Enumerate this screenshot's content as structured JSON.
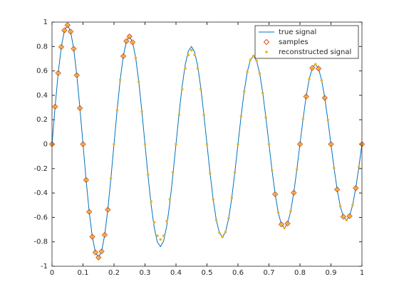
{
  "chart_data": {
    "type": "line",
    "x": [
      0,
      0.01,
      0.02,
      0.03,
      0.04,
      0.05,
      0.06,
      0.07,
      0.08,
      0.09,
      0.1,
      0.11,
      0.12,
      0.13,
      0.14,
      0.15,
      0.16,
      0.17,
      0.18,
      0.19,
      0.2,
      0.21,
      0.22,
      0.23,
      0.24,
      0.25,
      0.26,
      0.27,
      0.28,
      0.29,
      0.3,
      0.31,
      0.32,
      0.33,
      0.34,
      0.35,
      0.36,
      0.37,
      0.38,
      0.39,
      0.4,
      0.41,
      0.42,
      0.43,
      0.44,
      0.45,
      0.46,
      0.47,
      0.48,
      0.49,
      0.5,
      0.51,
      0.52,
      0.53,
      0.54,
      0.55,
      0.56,
      0.57,
      0.58,
      0.59,
      0.6,
      0.61,
      0.62,
      0.63,
      0.64,
      0.65,
      0.66,
      0.67,
      0.68,
      0.69,
      0.7,
      0.71,
      0.72,
      0.73,
      0.74,
      0.75,
      0.76,
      0.77,
      0.78,
      0.79,
      0.8,
      0.81,
      0.82,
      0.83,
      0.84,
      0.85,
      0.86,
      0.87,
      0.88,
      0.89,
      0.9,
      0.91,
      0.92,
      0.93,
      0.94,
      0.95,
      0.96,
      0.97,
      0.98,
      0.99,
      1
    ],
    "series": [
      {
        "name": "true signal",
        "color": "#0072bd",
        "style": "line",
        "values": [
          0,
          0.307,
          0.582,
          0.797,
          0.932,
          0.975,
          0.922,
          0.781,
          0.565,
          0.295,
          0,
          -0.293,
          -0.554,
          -0.758,
          -0.886,
          -0.928,
          -0.878,
          -0.743,
          -0.537,
          -0.281,
          0,
          0.278,
          0.527,
          0.721,
          0.844,
          0.882,
          0.835,
          0.707,
          0.511,
          0.267,
          0,
          -0.265,
          -0.501,
          -0.686,
          -0.803,
          -0.839,
          -0.794,
          -0.672,
          -0.486,
          -0.254,
          0,
          0.252,
          0.477,
          0.653,
          0.764,
          0.799,
          0.756,
          0.64,
          0.463,
          0.242,
          0,
          -0.239,
          -0.453,
          -0.621,
          -0.726,
          -0.76,
          -0.719,
          -0.608,
          -0.44,
          -0.23,
          0,
          0.228,
          0.431,
          0.591,
          0.69,
          0.723,
          0.684,
          0.579,
          0.419,
          0.219,
          0,
          -0.217,
          -0.41,
          -0.561,
          -0.657,
          -0.687,
          -0.65,
          -0.55,
          -0.398,
          -0.208,
          0,
          0.206,
          0.39,
          0.534,
          0.625,
          0.654,
          0.619,
          0.523,
          0.379,
          0.198,
          0,
          -0.196,
          -0.371,
          -0.508,
          -0.594,
          -0.622,
          -0.589,
          -0.498,
          -0.36,
          -0.188,
          0
        ]
      },
      {
        "name": "samples",
        "color": "#d95319",
        "style": "diamond",
        "x": [
          0,
          0.01,
          0.02,
          0.03,
          0.04,
          0.05,
          0.06,
          0.07,
          0.08,
          0.09,
          0.1,
          0.11,
          0.12,
          0.13,
          0.14,
          0.15,
          0.16,
          0.17,
          0.18,
          0.23,
          0.24,
          0.25,
          0.26,
          0.72,
          0.74,
          0.76,
          0.78,
          0.8,
          0.82,
          0.84,
          0.86,
          0.88,
          0.9,
          0.92,
          0.94,
          0.96,
          0.98,
          1
        ],
        "values": [
          0,
          0.307,
          0.582,
          0.797,
          0.932,
          0.975,
          0.922,
          0.781,
          0.565,
          0.295,
          0,
          -0.293,
          -0.554,
          -0.758,
          -0.886,
          -0.928,
          -0.878,
          -0.743,
          -0.537,
          0.721,
          0.844,
          0.882,
          0.835,
          -0.41,
          -0.657,
          -0.65,
          -0.398,
          0,
          0.39,
          0.625,
          0.619,
          0.379,
          0,
          -0.371,
          -0.594,
          -0.589,
          -0.36,
          0
        ]
      },
      {
        "name": "reconstructed signal",
        "color": "#edb120",
        "style": "dot",
        "values": [
          0,
          0.307,
          0.582,
          0.797,
          0.932,
          0.975,
          0.922,
          0.781,
          0.565,
          0.295,
          0,
          -0.293,
          -0.554,
          -0.758,
          -0.886,
          -0.928,
          -0.878,
          -0.743,
          -0.537,
          -0.281,
          0,
          0.278,
          0.527,
          0.721,
          0.844,
          0.882,
          0.835,
          0.707,
          0.511,
          0.267,
          0,
          -0.25,
          -0.47,
          -0.64,
          -0.75,
          -0.78,
          -0.75,
          -0.63,
          -0.45,
          -0.23,
          0,
          0.24,
          0.45,
          0.62,
          0.73,
          0.77,
          0.73,
          0.62,
          0.45,
          0.24,
          0,
          -0.239,
          -0.453,
          -0.621,
          -0.726,
          -0.76,
          -0.719,
          -0.608,
          -0.44,
          -0.23,
          0,
          0.228,
          0.431,
          0.591,
          0.69,
          0.723,
          0.684,
          0.579,
          0.419,
          0.219,
          0,
          -0.217,
          -0.41,
          -0.561,
          -0.657,
          -0.687,
          -0.65,
          -0.55,
          -0.398,
          -0.208,
          0,
          0.206,
          0.39,
          0.534,
          0.625,
          0.654,
          0.619,
          0.523,
          0.379,
          0.198,
          0,
          -0.196,
          -0.371,
          -0.508,
          -0.594,
          -0.622,
          -0.589,
          -0.498,
          -0.36,
          -0.188,
          0
        ]
      }
    ],
    "xlim": [
      0,
      1
    ],
    "xticks": [
      0,
      0.1,
      0.2,
      0.3,
      0.4,
      0.5,
      0.6,
      0.7,
      0.8,
      0.9,
      1
    ],
    "ylim": [
      -1,
      1
    ],
    "yticks": [
      -1,
      -0.8,
      -0.6,
      -0.4,
      -0.2,
      0,
      0.2,
      0.4,
      0.6,
      0.8,
      1
    ],
    "grid": false,
    "legend": "northeast"
  }
}
